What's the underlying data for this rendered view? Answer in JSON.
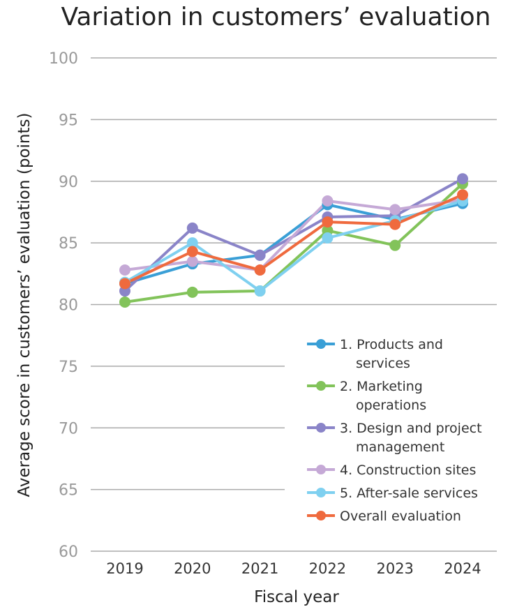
{
  "chart_data": {
    "type": "line",
    "title": "Variation in customers’ evaluation",
    "xlabel": "Fiscal year",
    "ylabel": "Average score in customers’ evaluation (points)",
    "categories": [
      "2019",
      "2020",
      "2021",
      "2022",
      "2023",
      "2024"
    ],
    "ylim": [
      60,
      100
    ],
    "yticks": [
      60,
      65,
      70,
      75,
      80,
      85,
      90,
      95,
      100
    ],
    "grid": "horizontal",
    "legend_position": "bottom-right",
    "series": [
      {
        "name": "1. Products and services",
        "legend_lines": [
          "1. Products and",
          "services"
        ],
        "color": "#3a9fd6",
        "values": [
          81.7,
          83.3,
          84.0,
          88.1,
          86.9,
          88.2
        ]
      },
      {
        "name": "2. Marketing operations",
        "legend_lines": [
          "2. Marketing",
          "operations"
        ],
        "color": "#82c35a",
        "values": [
          80.2,
          81.0,
          81.1,
          86.0,
          84.8,
          89.8
        ]
      },
      {
        "name": "3. Design and project management",
        "legend_lines": [
          "3. Design and project",
          "management"
        ],
        "color": "#8a84c8",
        "values": [
          81.1,
          86.2,
          84.0,
          87.1,
          87.2,
          90.2
        ]
      },
      {
        "name": "4. Construction sites",
        "legend_lines": [
          "4. Construction sites"
        ],
        "color": "#c5a9d6",
        "values": [
          82.8,
          83.5,
          82.8,
          88.4,
          87.7,
          88.5
        ]
      },
      {
        "name": "5. After-sale services",
        "legend_lines": [
          "5. After-sale services"
        ],
        "color": "#7fd0f0",
        "values": [
          81.8,
          85.0,
          81.1,
          85.4,
          86.8,
          88.4
        ]
      },
      {
        "name": "Overall evaluation",
        "legend_lines": [
          "Overall evaluation"
        ],
        "color": "#ef6a3e",
        "values": [
          81.7,
          84.3,
          82.8,
          86.7,
          86.5,
          88.9
        ]
      }
    ]
  }
}
